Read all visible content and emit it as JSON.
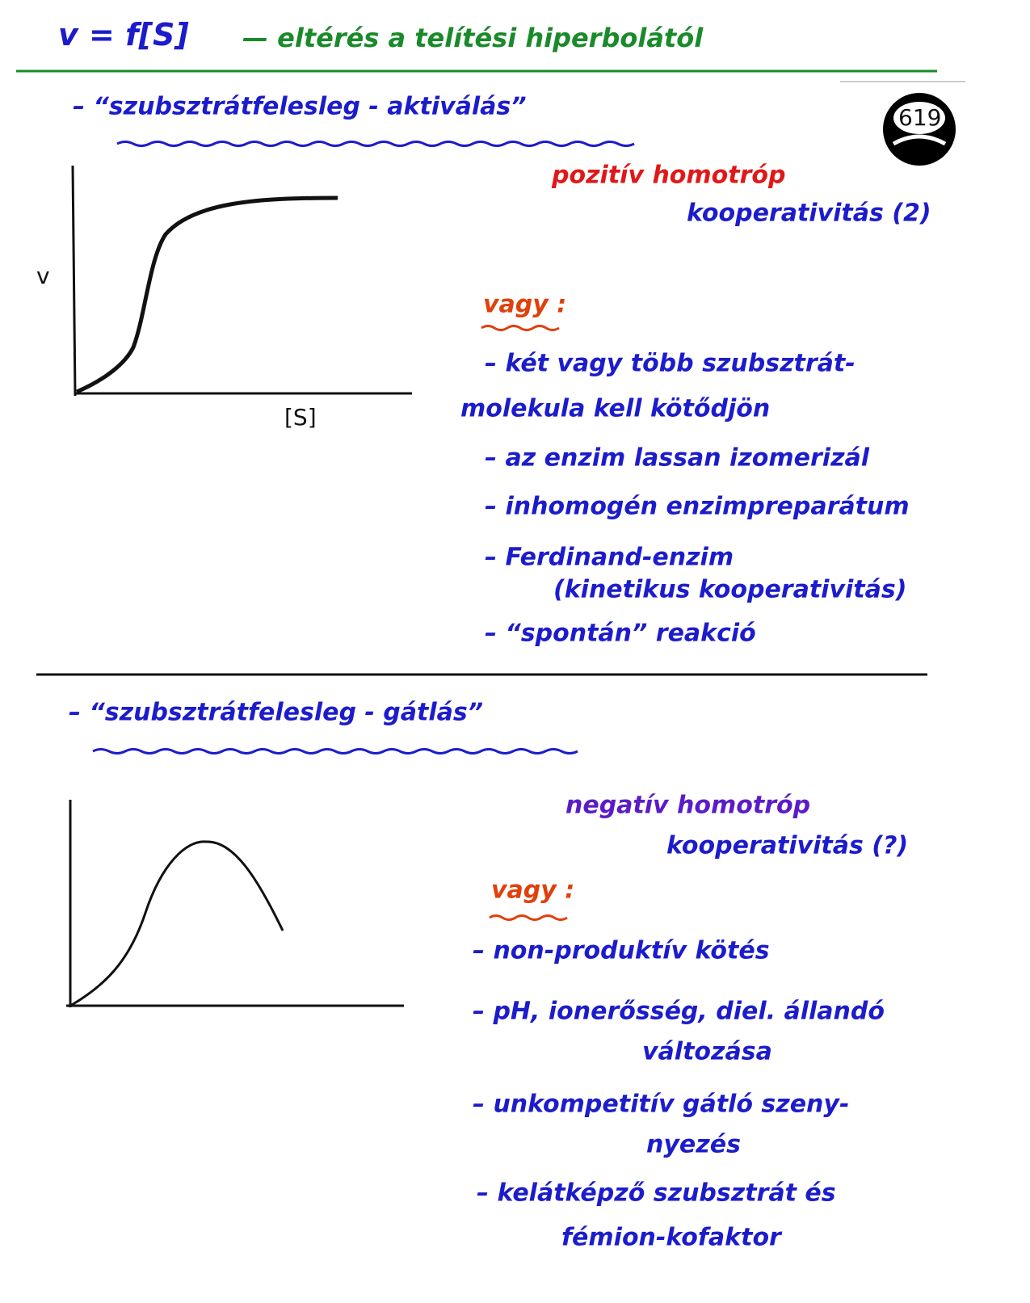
{
  "header": {
    "formula": "v = f[S]",
    "title": "— eltérés a telítési hiperbolától",
    "page_number": "619"
  },
  "sections": [
    {
      "heading": "– “szubsztrátfelesleg - aktiválás”",
      "y_label": "v",
      "x_label": "[S]",
      "type": [
        "pozitív homotróp",
        "kooperativitás (2)"
      ],
      "or_label": "vagy :",
      "items": [
        [
          "– két vagy több szubsztrát-",
          "molekula kell kötődjön"
        ],
        [
          "– az enzim lassan izomerizál"
        ],
        [
          "– inhomogén enzimpreparátum"
        ],
        [
          "– Ferdinand-enzim",
          "(kinetikus kooperativitás)"
        ],
        [
          "– “spontán” reakció"
        ]
      ]
    },
    {
      "heading": "– “szubsztrátfelesleg - gátlás”",
      "type": [
        "negatív homotróp",
        "kooperativitás (?)"
      ],
      "or_label": "vagy :",
      "items": [
        [
          "– non-produktív kötés"
        ],
        [
          "– pH, ionerősség, diel. állandó",
          "változása"
        ],
        [
          "– unkompetitív gátló szeny-",
          "nyezés"
        ],
        [
          "– kelátképző szubsztrát és",
          "fémion-kofaktor"
        ]
      ]
    }
  ]
}
